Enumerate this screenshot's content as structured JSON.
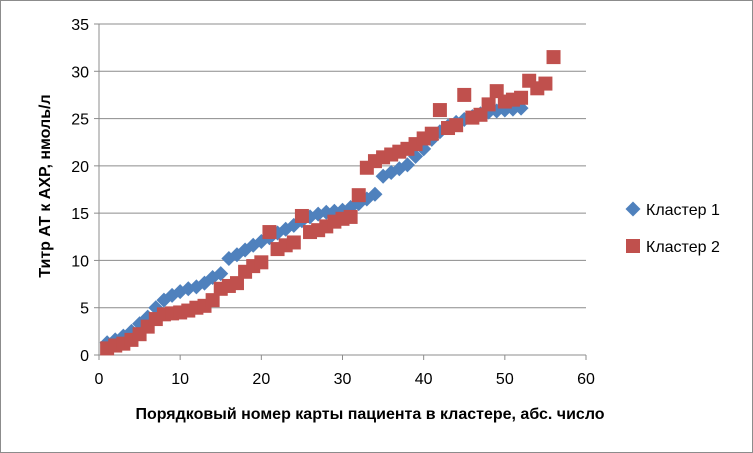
{
  "chart_data": {
    "type": "scatter",
    "title": "",
    "xlabel": "Порядковый номер карты пациента в кластере, абс. число",
    "ylabel": "Титр АТ к АХР, нмоль/л",
    "xlim": [
      0,
      60
    ],
    "ylim": [
      0,
      35
    ],
    "x_ticks": [
      "0",
      "10",
      "20",
      "30",
      "40",
      "50",
      "60"
    ],
    "y_ticks": [
      "0",
      "5",
      "10",
      "15",
      "20",
      "25",
      "30",
      "35"
    ],
    "grid": "horizontal",
    "legend_position": "right",
    "series": [
      {
        "name": "Кластер 1",
        "color": "#4f81bd",
        "marker": "diamond",
        "points": [
          [
            1,
            1.3
          ],
          [
            2,
            1.6
          ],
          [
            3,
            2.0
          ],
          [
            4,
            2.5
          ],
          [
            5,
            3.3
          ],
          [
            6,
            4.0
          ],
          [
            7,
            5.0
          ],
          [
            8,
            5.8
          ],
          [
            9,
            6.3
          ],
          [
            10,
            6.7
          ],
          [
            11,
            7.0
          ],
          [
            12,
            7.2
          ],
          [
            13,
            7.6
          ],
          [
            14,
            8.2
          ],
          [
            15,
            8.6
          ],
          [
            16,
            10.2
          ],
          [
            17,
            10.6
          ],
          [
            18,
            11.1
          ],
          [
            19,
            11.6
          ],
          [
            20,
            12.0
          ],
          [
            21,
            12.4
          ],
          [
            22,
            12.9
          ],
          [
            23,
            13.3
          ],
          [
            24,
            13.7
          ],
          [
            25,
            14.2
          ],
          [
            26,
            14.6
          ],
          [
            27,
            14.9
          ],
          [
            28,
            15.1
          ],
          [
            29,
            15.2
          ],
          [
            30,
            15.3
          ],
          [
            31,
            15.6
          ],
          [
            32,
            16.0
          ],
          [
            33,
            16.5
          ],
          [
            34,
            17.0
          ],
          [
            35,
            18.9
          ],
          [
            36,
            19.3
          ],
          [
            37,
            19.7
          ],
          [
            38,
            20.1
          ],
          [
            39,
            21.0
          ],
          [
            40,
            21.8
          ],
          [
            41,
            22.8
          ],
          [
            42,
            23.6
          ],
          [
            43,
            24.2
          ],
          [
            44,
            24.6
          ],
          [
            45,
            24.9
          ],
          [
            46,
            25.2
          ],
          [
            47,
            25.5
          ],
          [
            48,
            25.7
          ],
          [
            49,
            25.8
          ],
          [
            50,
            25.9
          ],
          [
            51,
            26.0
          ],
          [
            52,
            26.1
          ]
        ]
      },
      {
        "name": "Кластер 2",
        "color": "#c0504d",
        "marker": "square",
        "points": [
          [
            1,
            0.7
          ],
          [
            2,
            1.0
          ],
          [
            3,
            1.2
          ],
          [
            4,
            1.6
          ],
          [
            5,
            2.2
          ],
          [
            6,
            3.0
          ],
          [
            7,
            3.8
          ],
          [
            8,
            4.3
          ],
          [
            9,
            4.4
          ],
          [
            10,
            4.5
          ],
          [
            11,
            4.7
          ],
          [
            12,
            5.0
          ],
          [
            13,
            5.2
          ],
          [
            14,
            5.8
          ],
          [
            15,
            7.0
          ],
          [
            16,
            7.3
          ],
          [
            17,
            7.6
          ],
          [
            18,
            8.8
          ],
          [
            19,
            9.4
          ],
          [
            20,
            9.8
          ],
          [
            21,
            13.0
          ],
          [
            22,
            11.2
          ],
          [
            23,
            11.6
          ],
          [
            24,
            11.9
          ],
          [
            25,
            14.7
          ],
          [
            26,
            13.0
          ],
          [
            27,
            13.2
          ],
          [
            28,
            13.6
          ],
          [
            29,
            14.1
          ],
          [
            30,
            14.4
          ],
          [
            31,
            14.6
          ],
          [
            32,
            16.9
          ],
          [
            33,
            19.8
          ],
          [
            34,
            20.5
          ],
          [
            35,
            20.9
          ],
          [
            36,
            21.2
          ],
          [
            37,
            21.5
          ],
          [
            38,
            21.8
          ],
          [
            39,
            22.3
          ],
          [
            40,
            22.9
          ],
          [
            41,
            23.4
          ],
          [
            42,
            25.9
          ],
          [
            43,
            24.0
          ],
          [
            44,
            24.3
          ],
          [
            45,
            27.5
          ],
          [
            46,
            25.1
          ],
          [
            47,
            25.4
          ],
          [
            48,
            26.5
          ],
          [
            49,
            27.9
          ],
          [
            50,
            26.8
          ],
          [
            51,
            27.0
          ],
          [
            52,
            27.2
          ],
          [
            53,
            29.0
          ],
          [
            54,
            28.2
          ],
          [
            55,
            28.7
          ],
          [
            56,
            31.5
          ]
        ]
      }
    ]
  }
}
